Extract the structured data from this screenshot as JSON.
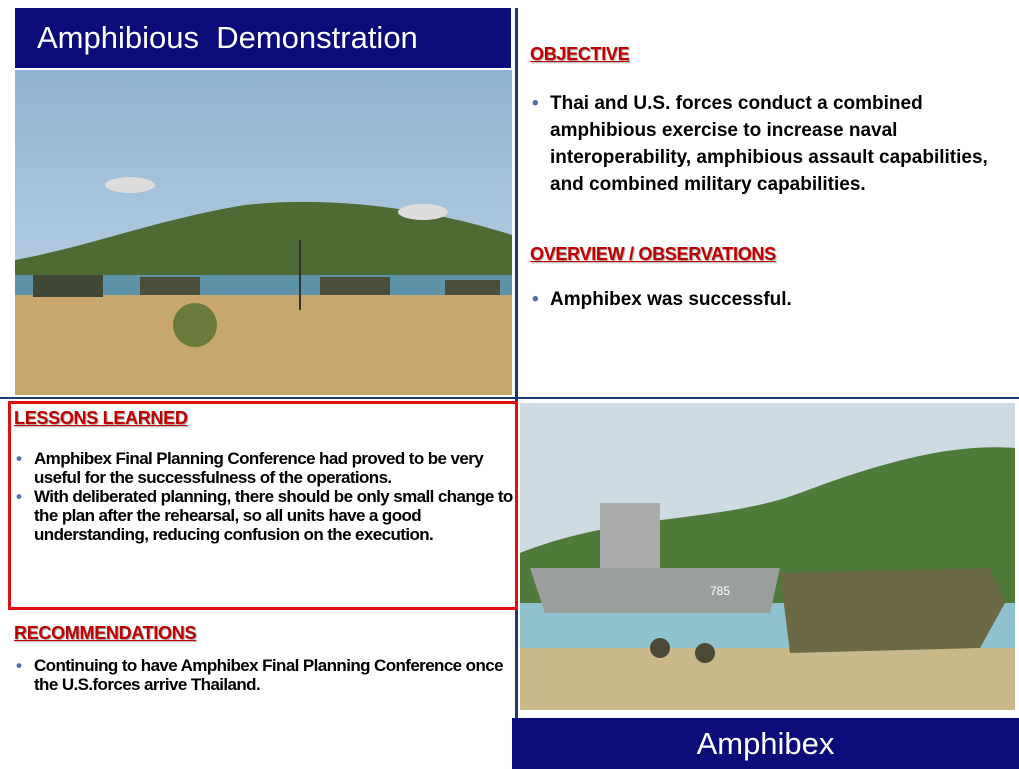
{
  "header": {
    "title": "Amphibious  Demonstration"
  },
  "objective": {
    "heading": "OBJECTIVE",
    "bullets": [
      "Thai and U.S. forces conduct  a combined amphibious exercise to increase naval interoperability, amphibious assault capabilities, and combined military capabilities."
    ]
  },
  "overview": {
    "heading": "OVERVIEW / OBSERVATIONS",
    "bullets": [
      "Amphibex was successful."
    ]
  },
  "lessons": {
    "heading": "LESSONS LEARNED",
    "bullets": [
      "Amphibex Final Planning Conference had proved to be very useful for the successfulness of the operations.",
      "With deliberated planning, there should be only small change to the plan after the rehearsal, so all units have a good understanding, reducing confusion on the execution."
    ]
  },
  "recommendations": {
    "heading": "RECOMMENDATIONS",
    "bullets": [
      "Continuing to have Amphibex Final Planning Conference once the U.S.forces arrive Thailand."
    ]
  },
  "photo_bottom": {
    "hull_number": "785"
  },
  "footer": {
    "title": "Amphibex"
  }
}
